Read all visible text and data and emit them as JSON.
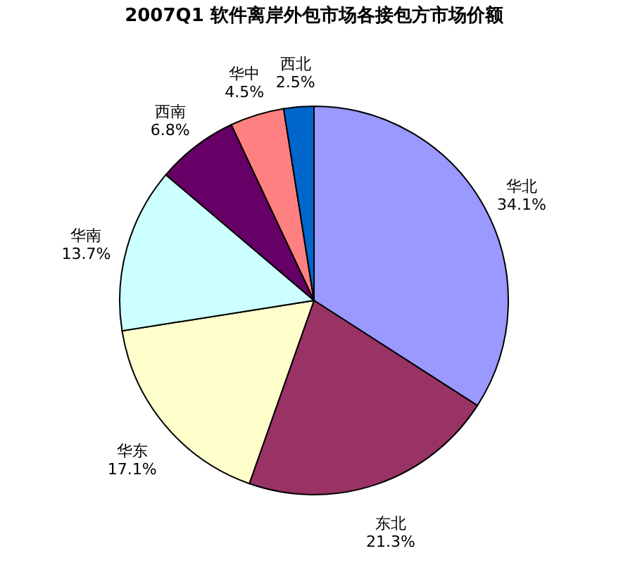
{
  "chart_data": {
    "type": "pie",
    "title": "2007Q1 软件离岸外包市场各接包方市场价额",
    "categories": [
      "华北",
      "东北",
      "华东",
      "华南",
      "西南",
      "华中",
      "西北"
    ],
    "values": [
      34.1,
      21.3,
      17.1,
      13.7,
      6.8,
      4.5,
      2.5
    ],
    "value_labels": [
      "34.1%",
      "21.3%",
      "17.1%",
      "13.7%",
      "6.8%",
      "4.5%",
      "2.5%"
    ],
    "colors": [
      "#9999ff",
      "#993366",
      "#ffffcc",
      "#ccffff",
      "#660066",
      "#ff8080",
      "#0066cc"
    ],
    "legend": false
  }
}
